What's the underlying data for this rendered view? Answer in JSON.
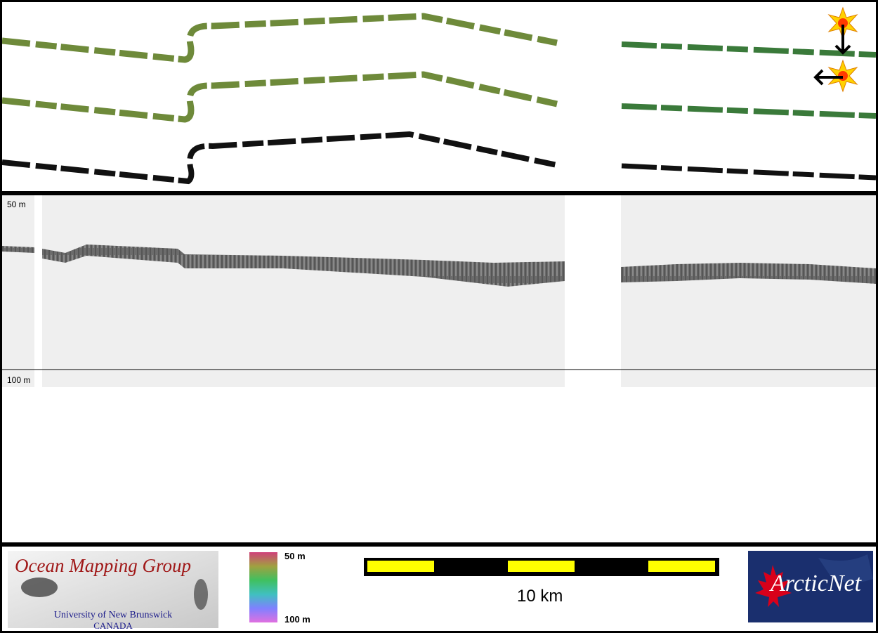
{
  "profile": {
    "depth_top_label": "50 m",
    "depth_bottom_label": "100 m"
  },
  "footer": {
    "omg_logo": {
      "title": "Ocean Mapping Group",
      "university": "University of New Brunswick",
      "country": "CANADA"
    },
    "colorbar": {
      "top_label": "50 m",
      "bottom_label": "100 m"
    },
    "scale": {
      "label": "10 km"
    },
    "arcticnet_logo": {
      "text": "ArcticNet"
    }
  },
  "colors": {
    "track_green": "#3a7a3a",
    "track_olive": "#6e8a3a",
    "track_black": "#111111",
    "scale_yellow": "#ffff00",
    "panel_bg": "#ffffff",
    "profile_bg": "#efefef"
  },
  "icons": [
    "sun-marker-icon",
    "arrow-down-icon",
    "arrow-left-icon",
    "maple-leaf-icon"
  ]
}
